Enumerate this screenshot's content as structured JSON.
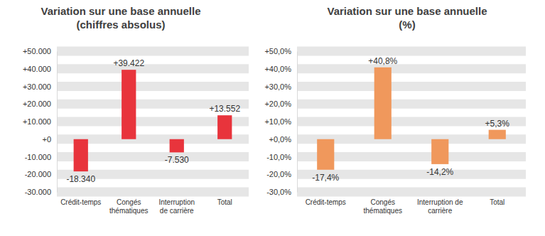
{
  "chart_data": [
    {
      "type": "bar",
      "title": "Variation sur une base annuelle",
      "subtitle": "(chiffres absolus)",
      "categories": [
        "Crédit-temps",
        "Congés thématiques",
        "Interruption de carrière",
        "Total"
      ],
      "values": [
        -18340,
        39422,
        -7530,
        13552
      ],
      "value_labels": [
        "-18.340",
        "+39.422",
        "-7.530",
        "+13.552"
      ],
      "color": "#e8343c",
      "ylim": [
        -30000,
        50000
      ],
      "yticks": [
        {
          "value": -30000,
          "label": "-30.000"
        },
        {
          "value": -20000,
          "label": "-20.000"
        },
        {
          "value": -10000,
          "label": "-10.000"
        },
        {
          "value": 0,
          "label": "+0"
        },
        {
          "value": 10000,
          "label": "+10.000"
        },
        {
          "value": 20000,
          "label": "+20.000"
        },
        {
          "value": 30000,
          "label": "+30.000"
        },
        {
          "value": 40000,
          "label": "+40.000"
        },
        {
          "value": 50000,
          "label": "+50.000"
        }
      ],
      "grid": true,
      "data_labels": true
    },
    {
      "type": "bar",
      "title": "Variation sur une base annuelle",
      "subtitle": "(%)",
      "categories": [
        "Crédit-temps",
        "Congés thématiques",
        "Interruption de carrière",
        "Total"
      ],
      "values": [
        -17.4,
        40.8,
        -14.2,
        5.3
      ],
      "value_labels": [
        "-17,4%",
        "+40,8%",
        "-14,2%",
        "+5,3%"
      ],
      "color": "#f0985c",
      "ylim": [
        -30,
        50
      ],
      "yticks": [
        {
          "value": -30,
          "label": "-30,0%"
        },
        {
          "value": -20,
          "label": "-20,0%"
        },
        {
          "value": -10,
          "label": "-10,0%"
        },
        {
          "value": 0,
          "label": "+0,0%"
        },
        {
          "value": 10,
          "label": "+10,0%"
        },
        {
          "value": 20,
          "label": "+20,0%"
        },
        {
          "value": 30,
          "label": "+30,0%"
        },
        {
          "value": 40,
          "label": "+40,0%"
        },
        {
          "value": 50,
          "label": "+50,0%"
        }
      ],
      "grid": true,
      "data_labels": true
    }
  ]
}
